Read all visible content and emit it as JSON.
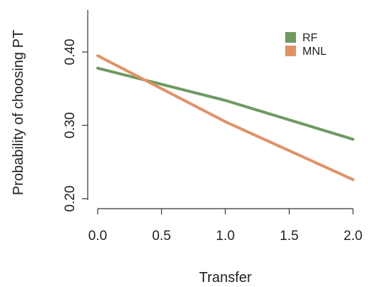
{
  "chart_data": {
    "type": "line",
    "xlabel": "Transfer",
    "ylabel": "Probability of choosing PT",
    "x": [
      0.0,
      1.0,
      2.0
    ],
    "xlim": [
      0.0,
      2.0
    ],
    "ylim": [
      0.2,
      0.45
    ],
    "xticks": [
      0.0,
      0.5,
      1.0,
      1.5,
      2.0
    ],
    "xtick_labels": [
      "0.0",
      "0.5",
      "1.0",
      "1.5",
      "2.0"
    ],
    "yticks": [
      0.2,
      0.3,
      0.4
    ],
    "ytick_labels": [
      "0.20",
      "0.30",
      "0.40"
    ],
    "grid": false,
    "legend": "top-right",
    "series": [
      {
        "name": "RF",
        "color": "#6e9a62",
        "values": [
          0.378,
          0.334,
          0.281
        ]
      },
      {
        "name": "MNL",
        "color": "#e09268",
        "values": [
          0.395,
          0.305,
          0.226
        ]
      }
    ]
  }
}
